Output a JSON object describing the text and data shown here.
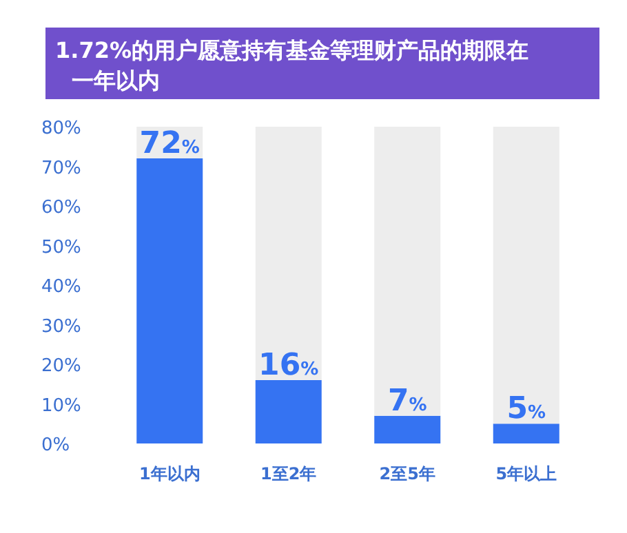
{
  "chart_data": {
    "type": "bar",
    "title": "1.72%的用户愿意持有基金等理财产品的期限在一年以内",
    "categories": [
      "1年以内",
      "1至2年",
      "2至5年",
      "5年以上"
    ],
    "stacked": true,
    "series": [
      {
        "color": "#3573f2",
        "values": [
          72,
          16,
          7,
          5
        ],
        "value_labels": [
          "72%",
          "16%",
          "7%",
          "5%"
        ]
      },
      {
        "color": "#ededed",
        "values": [
          8,
          64,
          73,
          75
        ]
      }
    ],
    "ylim": [
      0,
      80
    ],
    "yticks": [
      {
        "value": 0,
        "label": "0%"
      },
      {
        "value": 10,
        "label": "10%"
      },
      {
        "value": 20,
        "label": "20%"
      },
      {
        "value": 30,
        "label": "30%"
      },
      {
        "value": 40,
        "label": "40%"
      },
      {
        "value": 50,
        "label": "50%"
      },
      {
        "value": 60,
        "label": "60%"
      },
      {
        "value": 70,
        "label": "70%"
      },
      {
        "value": 80,
        "label": "80%"
      }
    ]
  }
}
